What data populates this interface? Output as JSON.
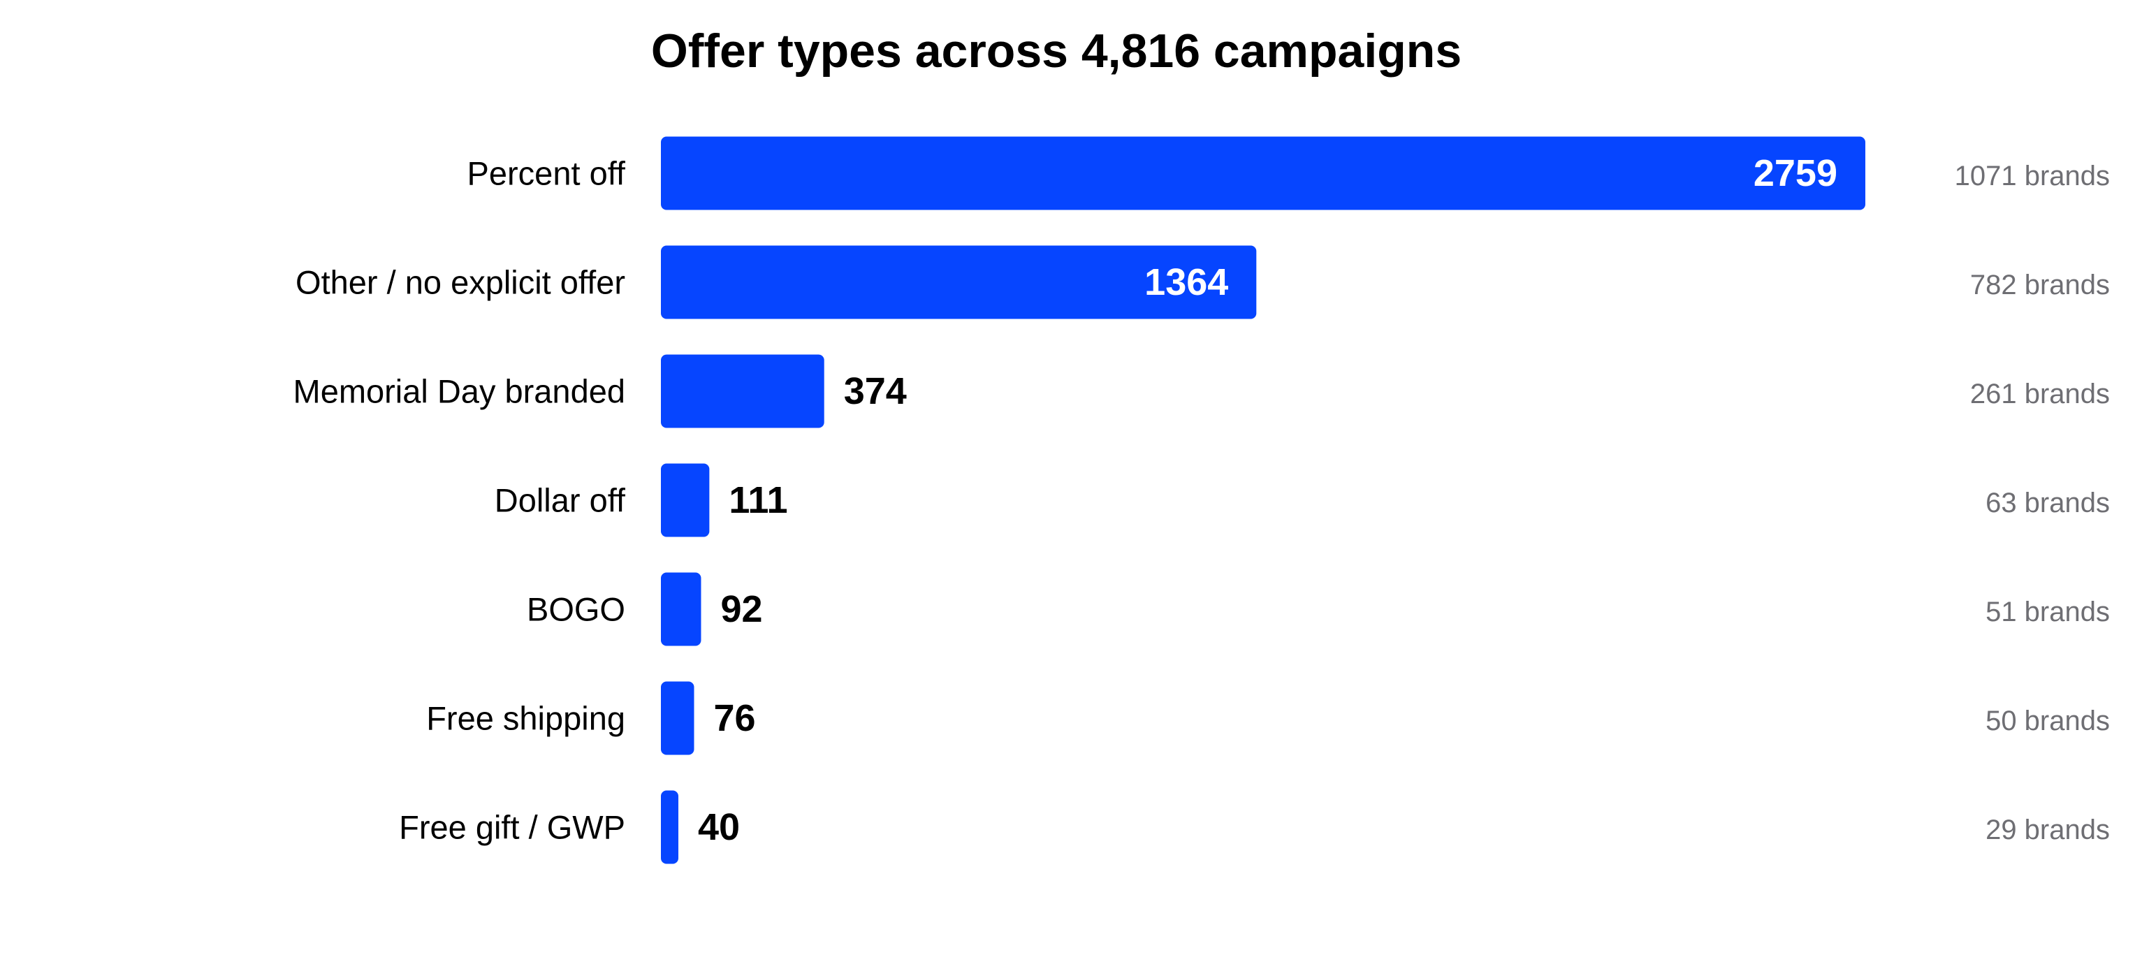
{
  "chart_data": {
    "type": "bar",
    "orientation": "horizontal",
    "title": "Offer types across 4,816 campaigns",
    "xlabel": "",
    "ylabel": "",
    "xlim": [
      0,
      2759
    ],
    "grid": false,
    "legend": "none",
    "categories": [
      "Percent off",
      "Other / no explicit offer",
      "Memorial Day branded",
      "Dollar off",
      "BOGO",
      "Free shipping",
      "Free gift / GWP"
    ],
    "values": [
      2759,
      1364,
      374,
      111,
      92,
      76,
      40
    ],
    "annotations": [
      "1071 brands",
      "782 brands",
      "261 brands",
      "63 brands",
      "51 brands",
      "50 brands",
      "29 brands"
    ]
  },
  "colors": {
    "bar": "#0645FF",
    "value_inside": "#FFFFFF",
    "value_outside": "#000000",
    "annotation": "#6E6E73"
  }
}
